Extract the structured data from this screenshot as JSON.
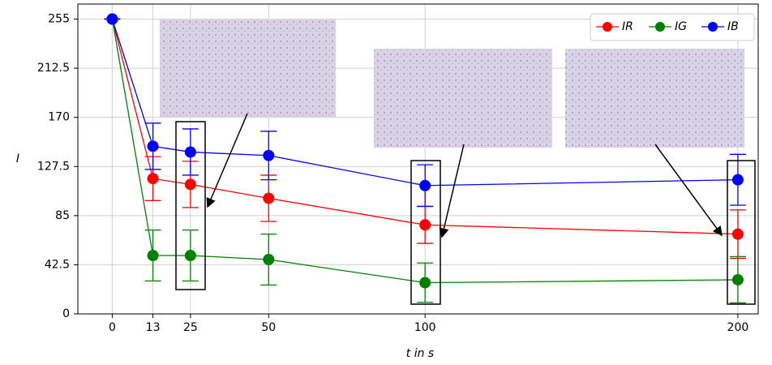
{
  "chart_data": {
    "type": "line",
    "x_label": "t in s",
    "y_label": "I",
    "x": [
      0,
      13,
      25,
      50,
      100,
      200
    ],
    "series": [
      {
        "name": "IR",
        "color": "#ff0000",
        "values": [
          255,
          117,
          112,
          100,
          77,
          69
        ],
        "errors": [
          0,
          19,
          20,
          20,
          16,
          21
        ]
      },
      {
        "name": "IG",
        "color": "#008000",
        "values": [
          255,
          50.5,
          50.5,
          47,
          27,
          29.5
        ],
        "errors": [
          0,
          22,
          22,
          22,
          17,
          20
        ]
      },
      {
        "name": "IB",
        "color": "#0000ff",
        "values": [
          255,
          145,
          140,
          137,
          111,
          116
        ],
        "errors": [
          0,
          20,
          20,
          21,
          18,
          22
        ]
      }
    ],
    "xlim": [
      -11,
      206.5
    ],
    "ylim": [
      0,
      268
    ],
    "xticks": [
      0,
      13,
      25,
      50,
      100,
      200
    ],
    "yticks": [
      0,
      42.5,
      85,
      127.5,
      170,
      212.5,
      255
    ],
    "grid": true,
    "legend": "upper right"
  }
}
